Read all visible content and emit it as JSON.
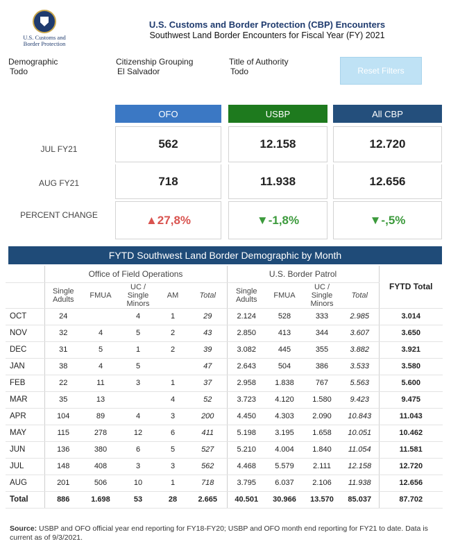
{
  "logo": {
    "line1": "U.S. Customs and",
    "line2": "Border Protection"
  },
  "header": {
    "title": "U.S. Customs and Border Protection (CBP) Encounters",
    "subtitle": "Southwest Land Border Encounters for Fiscal Year (FY) 2021"
  },
  "filters": {
    "demographic": {
      "label": "Demographic",
      "value": "Todo"
    },
    "citizenship": {
      "label": "Citizenship Grouping",
      "value": "El Salvador"
    },
    "authority": {
      "label": "Title of Authority",
      "value": "Todo"
    },
    "reset_label": "Reset Filters"
  },
  "kpi": {
    "headers": {
      "ofo": "OFO",
      "usbp": "USBP",
      "allcbp": "All CBP"
    },
    "row1": {
      "label": "JUL FY21",
      "ofo": "562",
      "usbp": "12.158",
      "allcbp": "12.720"
    },
    "row2": {
      "label": "AUG FY21",
      "ofo": "718",
      "usbp": "11.938",
      "allcbp": "12.656"
    },
    "pct": {
      "label": "PERCENT CHANGE",
      "ofo": "▲27,8%",
      "usbp": "▼-1,8%",
      "allcbp": "▼-,5%"
    }
  },
  "section_title": "FYTD Southwest Land Border Demographic by Month",
  "table": {
    "groups": {
      "ofo": "Office of Field Operations",
      "usbp": "U.S. Border Patrol"
    },
    "cols": {
      "single_adults": "Single Adults",
      "fmua": "FMUA",
      "uc": "UC / Single Minors",
      "am": "AM",
      "total": "Total",
      "fytd": "FYTD Total"
    },
    "rows": [
      {
        "m": "OCT",
        "o_sa": "24",
        "o_fmua": "",
        "o_uc": "4",
        "o_am": "1",
        "o_tot": "29",
        "u_sa": "2.124",
        "u_fmua": "528",
        "u_uc": "333",
        "u_tot": "2.985",
        "fytd": "3.014"
      },
      {
        "m": "NOV",
        "o_sa": "32",
        "o_fmua": "4",
        "o_uc": "5",
        "o_am": "2",
        "o_tot": "43",
        "u_sa": "2.850",
        "u_fmua": "413",
        "u_uc": "344",
        "u_tot": "3.607",
        "fytd": "3.650"
      },
      {
        "m": "DEC",
        "o_sa": "31",
        "o_fmua": "5",
        "o_uc": "1",
        "o_am": "2",
        "o_tot": "39",
        "u_sa": "3.082",
        "u_fmua": "445",
        "u_uc": "355",
        "u_tot": "3.882",
        "fytd": "3.921"
      },
      {
        "m": "JAN",
        "o_sa": "38",
        "o_fmua": "4",
        "o_uc": "5",
        "o_am": "",
        "o_tot": "47",
        "u_sa": "2.643",
        "u_fmua": "504",
        "u_uc": "386",
        "u_tot": "3.533",
        "fytd": "3.580"
      },
      {
        "m": "FEB",
        "o_sa": "22",
        "o_fmua": "11",
        "o_uc": "3",
        "o_am": "1",
        "o_tot": "37",
        "u_sa": "2.958",
        "u_fmua": "1.838",
        "u_uc": "767",
        "u_tot": "5.563",
        "fytd": "5.600"
      },
      {
        "m": "MAR",
        "o_sa": "35",
        "o_fmua": "13",
        "o_uc": "",
        "o_am": "4",
        "o_tot": "52",
        "u_sa": "3.723",
        "u_fmua": "4.120",
        "u_uc": "1.580",
        "u_tot": "9.423",
        "fytd": "9.475"
      },
      {
        "m": "APR",
        "o_sa": "104",
        "o_fmua": "89",
        "o_uc": "4",
        "o_am": "3",
        "o_tot": "200",
        "u_sa": "4.450",
        "u_fmua": "4.303",
        "u_uc": "2.090",
        "u_tot": "10.843",
        "fytd": "11.043"
      },
      {
        "m": "MAY",
        "o_sa": "115",
        "o_fmua": "278",
        "o_uc": "12",
        "o_am": "6",
        "o_tot": "411",
        "u_sa": "5.198",
        "u_fmua": "3.195",
        "u_uc": "1.658",
        "u_tot": "10.051",
        "fytd": "10.462"
      },
      {
        "m": "JUN",
        "o_sa": "136",
        "o_fmua": "380",
        "o_uc": "6",
        "o_am": "5",
        "o_tot": "527",
        "u_sa": "5.210",
        "u_fmua": "4.004",
        "u_uc": "1.840",
        "u_tot": "11.054",
        "fytd": "11.581"
      },
      {
        "m": "JUL",
        "o_sa": "148",
        "o_fmua": "408",
        "o_uc": "3",
        "o_am": "3",
        "o_tot": "562",
        "u_sa": "4.468",
        "u_fmua": "5.579",
        "u_uc": "2.111",
        "u_tot": "12.158",
        "fytd": "12.720"
      },
      {
        "m": "AUG",
        "o_sa": "201",
        "o_fmua": "506",
        "o_uc": "10",
        "o_am": "1",
        "o_tot": "718",
        "u_sa": "3.795",
        "u_fmua": "6.037",
        "u_uc": "2.106",
        "u_tot": "11.938",
        "fytd": "12.656"
      }
    ],
    "total": {
      "m": "Total",
      "o_sa": "886",
      "o_fmua": "1.698",
      "o_uc": "53",
      "o_am": "28",
      "o_tot": "2.665",
      "u_sa": "40.501",
      "u_fmua": "30.966",
      "u_uc": "13.570",
      "u_tot": "85.037",
      "fytd": "87.702"
    }
  },
  "footnote": {
    "bold": "Source:",
    "text": " USBP and OFO official year end reporting for FY18-FY20; USBP and OFO month end reporting for FY21 to date. Data is current as of 9/3/2021."
  }
}
